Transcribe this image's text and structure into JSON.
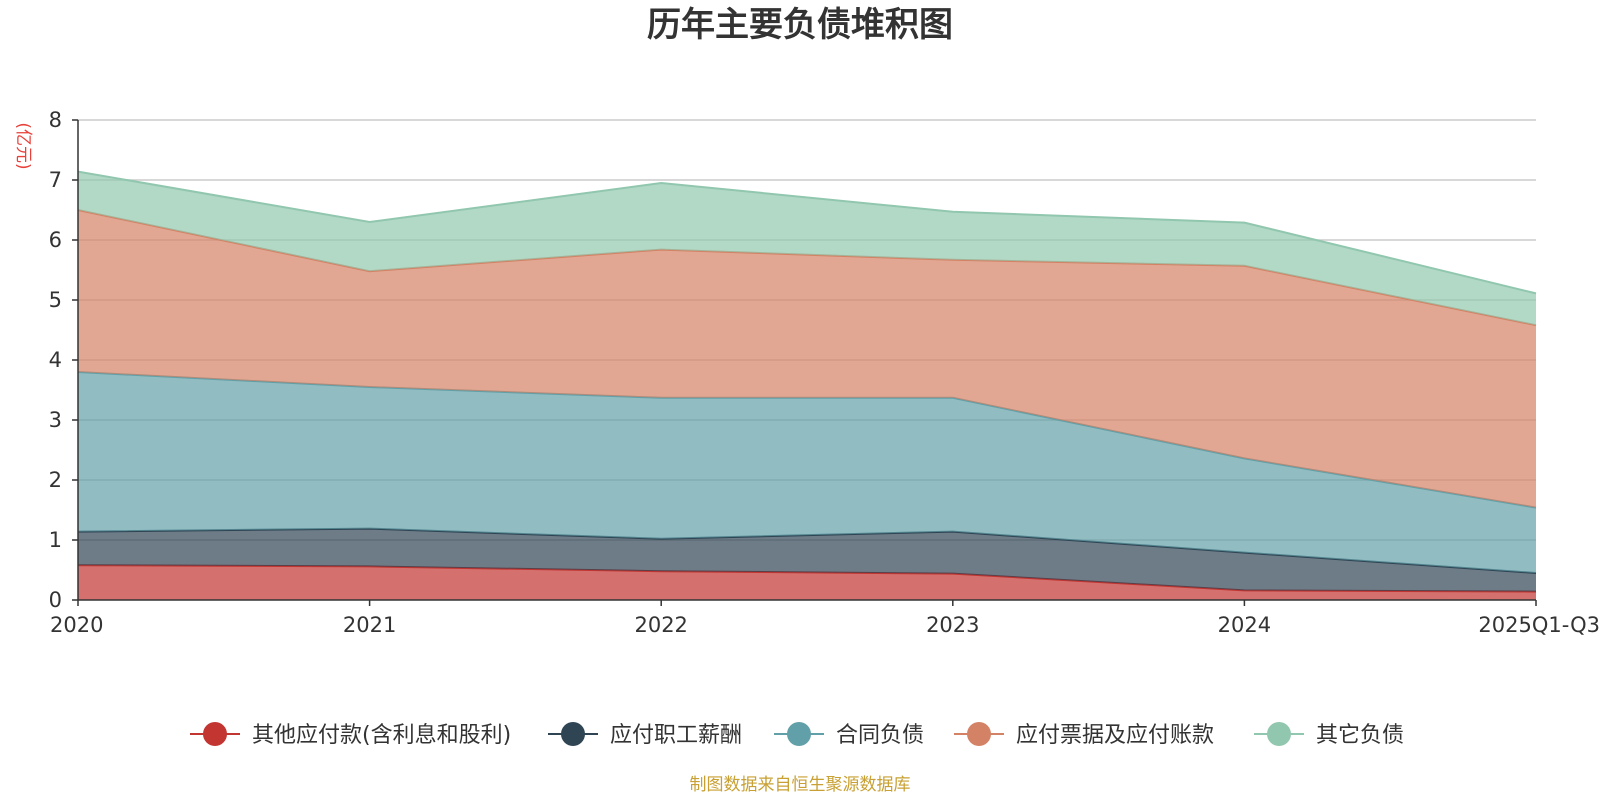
{
  "chart_data": {
    "type": "area",
    "stacked": true,
    "title": "历年主要负债堆积图",
    "ylabel": "(亿元)",
    "xlabel": "",
    "categories": [
      "2020",
      "2021",
      "2022",
      "2023",
      "2024",
      "2025Q1-Q3"
    ],
    "ylim": [
      0,
      8
    ],
    "yticks": [
      0,
      1,
      2,
      3,
      4,
      5,
      6,
      7,
      8
    ],
    "grid": true,
    "legend_position": "bottom",
    "series": [
      {
        "name": "其他应付款(含利息和股利)",
        "color": "#c23531",
        "values": [
          0.58,
          0.56,
          0.48,
          0.44,
          0.16,
          0.14
        ]
      },
      {
        "name": "应付职工薪酬",
        "color": "#2f4554",
        "values": [
          0.56,
          0.63,
          0.54,
          0.7,
          0.63,
          0.31
        ]
      },
      {
        "name": "合同负债",
        "color": "#61a0a8",
        "values": [
          2.66,
          2.36,
          2.35,
          2.23,
          1.57,
          1.09
        ]
      },
      {
        "name": "应付票据及应付账款",
        "color": "#d48265",
        "values": [
          2.7,
          1.93,
          2.47,
          2.3,
          3.21,
          3.04
        ]
      },
      {
        "name": "其它负债",
        "color": "#91c7ae",
        "values": [
          0.64,
          0.82,
          1.11,
          0.8,
          0.72,
          0.53
        ]
      }
    ],
    "source": "制图数据来自恒生聚源数据库",
    "source_color": "#c8a033"
  }
}
